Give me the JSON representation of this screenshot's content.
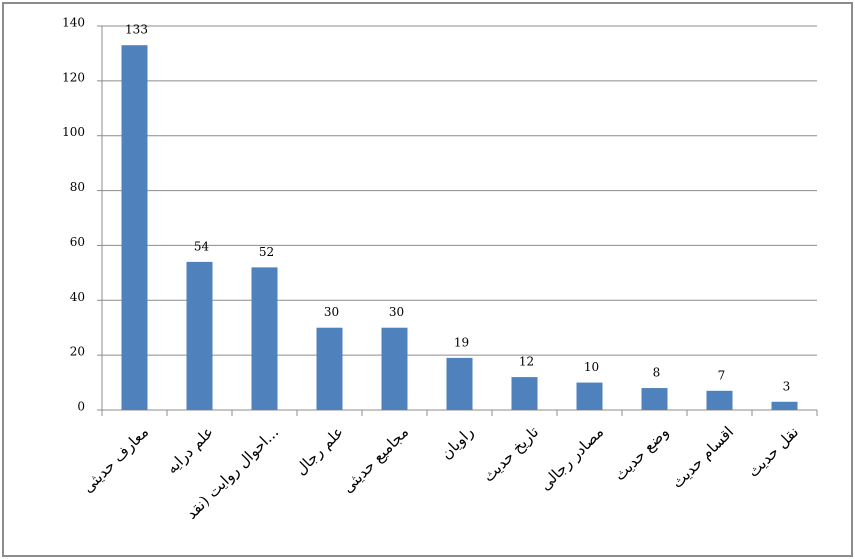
{
  "chart_data": {
    "type": "bar",
    "categories": [
      "معارف حدیثی",
      "علم درایه",
      "احوال روایت (نقد...",
      "علم رجال",
      "مجامیع حدیثی",
      "راویان",
      "تاریخ حدیث",
      "مصادر رجالی",
      "وضع حدیث",
      "اقسام حدیث",
      "نقل حدیث"
    ],
    "values": [
      133,
      54,
      52,
      30,
      30,
      19,
      12,
      10,
      8,
      7,
      3
    ],
    "color": "#4f81bd",
    "ylim": [
      0,
      140
    ],
    "yticks": [
      0,
      20,
      40,
      60,
      80,
      100,
      120,
      140
    ],
    "grid": true
  }
}
